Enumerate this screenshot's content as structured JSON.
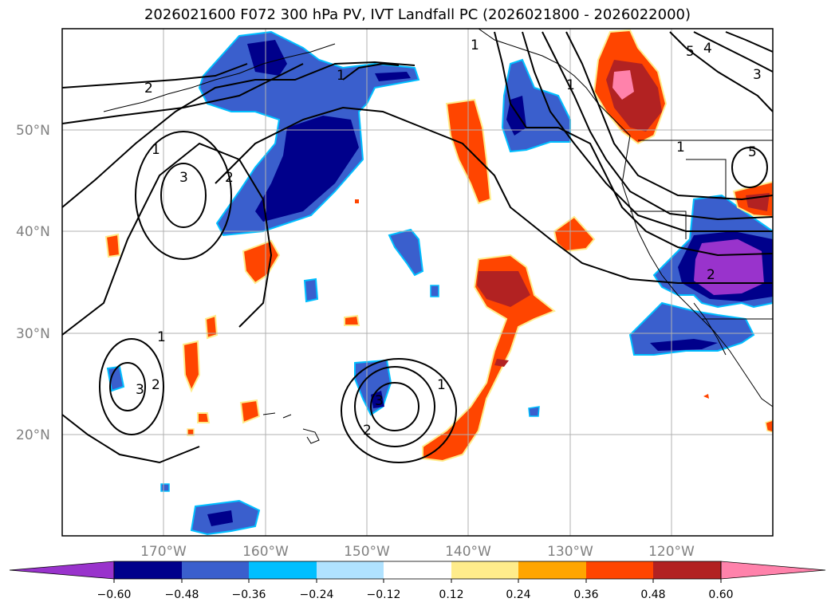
{
  "title": "2026021600 F072 300 hPa PV, IVT Landfall PC (2026021800 - 2026022000)",
  "lat_labels": [
    "50°N",
    "40°N",
    "30°N",
    "20°N"
  ],
  "lon_labels": [
    "170°W",
    "160°W",
    "150°W",
    "140°W",
    "130°W",
    "120°W"
  ],
  "colorbar": {
    "ticks": [
      "−0.60",
      "−0.48",
      "−0.36",
      "−0.24",
      "−0.12",
      "0.12",
      "0.24",
      "0.36",
      "0.48",
      "0.60"
    ],
    "colors": {
      "extend_low": "#9933cc",
      "neg_060": "#00008b",
      "neg_048": "#3a5fcd",
      "neg_036": "#00bfff",
      "neg_024": "#b0e2ff",
      "neutral": "#ffffff",
      "pos_012": "#ffec8b",
      "pos_024": "#ffa500",
      "pos_036": "#ff4500",
      "pos_048": "#b22222",
      "extend_high": "#ff82ab"
    }
  },
  "contour_labels": [
    "2",
    "1",
    "1",
    "1",
    "3",
    "2",
    "1",
    "2",
    "3",
    "1",
    "3",
    "2",
    "1",
    "5",
    "4",
    "3",
    "5",
    "1",
    "2"
  ]
}
